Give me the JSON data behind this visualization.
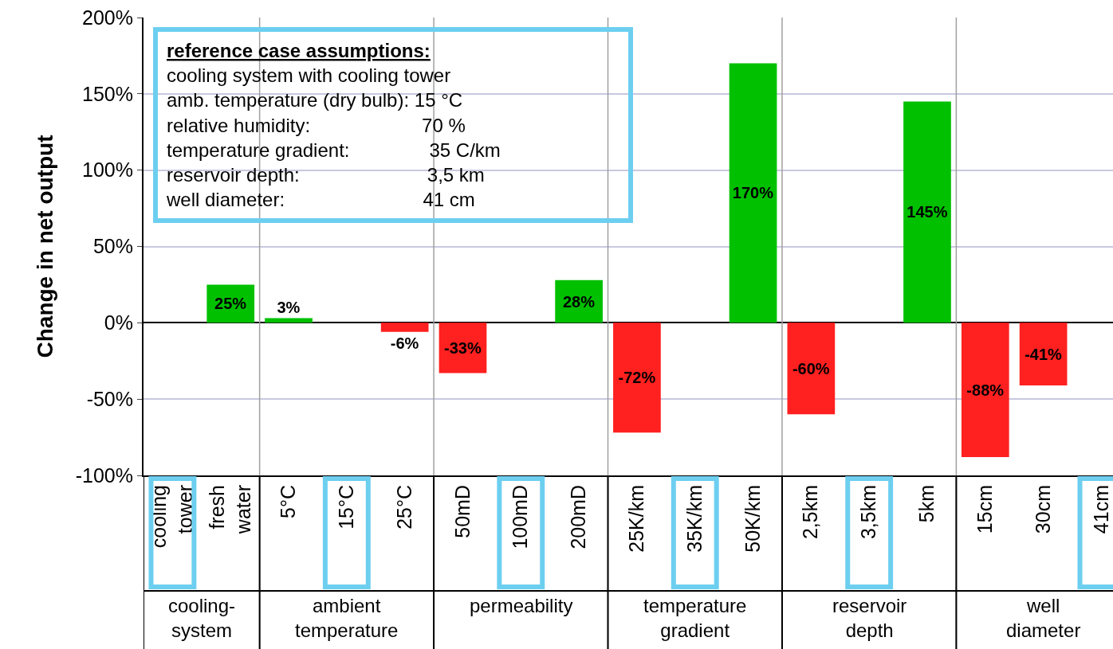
{
  "chart_data": {
    "type": "bar",
    "ylabel": "Change in net output",
    "categories": [
      "cooling\ntower",
      "fresh\nwater",
      "5°C",
      "15°C",
      "25°C",
      "50mD",
      "100mD",
      "200mD",
      "25K/km",
      "35K/km",
      "50K/km",
      "2,5km",
      "3,5km",
      "5km",
      "15cm",
      "30cm",
      "41cm"
    ],
    "values": [
      0,
      25,
      3,
      0,
      -6,
      -33,
      0,
      28,
      -72,
      0,
      170,
      -60,
      0,
      145,
      -88,
      -41,
      0
    ],
    "colors": [
      "#00c000",
      "#00c000",
      "#00c000",
      "#00c000",
      "#ff2020",
      "#ff2020",
      "#00c000",
      "#00c000",
      "#ff2020",
      "#00c000",
      "#00c000",
      "#ff2020",
      "#00c000",
      "#00c000",
      "#ff2020",
      "#ff2020",
      "#00c000"
    ],
    "value_labels": [
      null,
      "25%",
      "3%",
      null,
      "-6%",
      "-33%",
      null,
      "28%",
      "-72%",
      null,
      "170%",
      "-60%",
      null,
      "145%",
      "-88%",
      "-41%",
      null
    ],
    "ylim": [
      -100,
      200
    ],
    "yticks": [
      {
        "value": -100,
        "label": "-100%"
      },
      {
        "value": -50,
        "label": "-50%"
      },
      {
        "value": 0,
        "label": "0%"
      },
      {
        "value": 50,
        "label": "50%"
      },
      {
        "value": 100,
        "label": "100%"
      },
      {
        "value": 150,
        "label": "150%"
      },
      {
        "value": 200,
        "label": "200%"
      }
    ],
    "grid": "y",
    "legend": false,
    "annotations": [
      "cooling-\nsystem",
      "ambient\ntemperature",
      "permeability",
      "temperature\ngradient",
      "reservoir\ndepth",
      "well\ndiameter",
      "reference case assumptions:",
      "cooling system with cooling tower",
      "amb. temperature (dry bulb): 15 °C",
      "relative humidity:                     70 %",
      "temperature gradient:               35 C/km",
      "reservoir depth:                        3,5 km",
      "well diameter:                          41 cm"
    ]
  }
}
